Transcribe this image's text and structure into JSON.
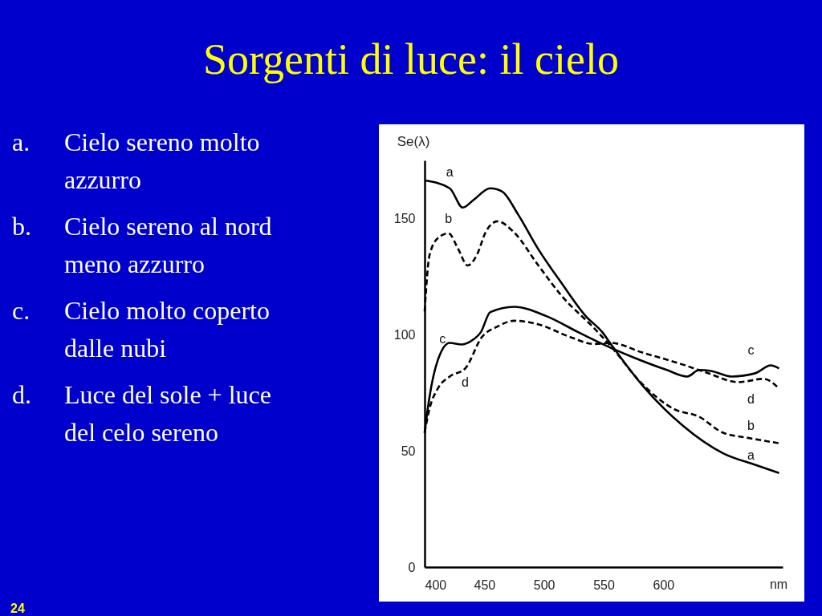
{
  "chart_data": {
    "type": "line",
    "title": "Sorgenti di luce: il cielo",
    "xlabel": "nm",
    "ylabel": "Se(λ)",
    "xlim": [
      400,
      700
    ],
    "ylim": [
      0,
      175
    ],
    "xticks": [
      400,
      450,
      500,
      550,
      600
    ],
    "yticks": [
      0,
      50,
      100,
      150
    ],
    "marker": "none",
    "series": [
      {
        "name": "a",
        "color": "#000000",
        "line_style": "solid",
        "x": [
          400,
          421,
          432,
          441,
          455,
          465,
          478,
          495,
          515,
          535,
          549,
          556,
          582,
          616,
          650,
          677,
          697
        ],
        "values": [
          166.4,
          163,
          154.7,
          158,
          163,
          161.6,
          152,
          137,
          122,
          108,
          101,
          96,
          78.5,
          61,
          49,
          44,
          40.5
        ]
      },
      {
        "name": "b",
        "color": "#000000",
        "line_style": "dashed",
        "x": [
          400,
          404,
          411,
          420,
          428,
          436,
          444,
          451,
          461,
          475,
          495,
          515,
          542,
          556,
          582,
          609,
          630,
          650,
          670,
          697
        ],
        "values": [
          110,
          134,
          141.5,
          143.6,
          137,
          129.8,
          134.6,
          144,
          148.8,
          144,
          130,
          116.6,
          102.8,
          95,
          79,
          68,
          64.7,
          57.8,
          55.7,
          53.3
        ]
      },
      {
        "name": "c",
        "color": "#000000",
        "line_style": "solid",
        "x": [
          400,
          404,
          411,
          421,
          431,
          441,
          447,
          455,
          475,
          502,
          529,
          549,
          576,
          603,
          620,
          630,
          640,
          657,
          677,
          690,
          697
        ],
        "values": [
          57.8,
          73,
          89,
          96.5,
          95.8,
          98,
          101,
          109.7,
          112,
          108,
          101,
          96,
          90,
          84.8,
          82,
          84.8,
          84.4,
          82,
          83.4,
          86.8,
          85.5
        ]
      },
      {
        "name": "d",
        "color": "#000000",
        "line_style": "dashed",
        "x": [
          400,
          404,
          411,
          421,
          434,
          448,
          461,
          475,
          495,
          522,
          542,
          556,
          582,
          616,
          636,
          663,
          684,
          697
        ],
        "values": [
          57.8,
          68,
          76.8,
          82,
          85.5,
          99,
          103.5,
          106,
          104.5,
          99,
          96,
          96.5,
          92.4,
          87.2,
          83.7,
          79.6,
          81,
          76.8
        ]
      }
    ],
    "annotations": [
      "a. Cielo sereno molto azzurro",
      "b. Cielo sereno al nord meno azzurro",
      "c. Cielo molto coperto dalle nubi",
      "d. Luce del sole + luce del celo sereno",
      "24"
    ]
  }
}
